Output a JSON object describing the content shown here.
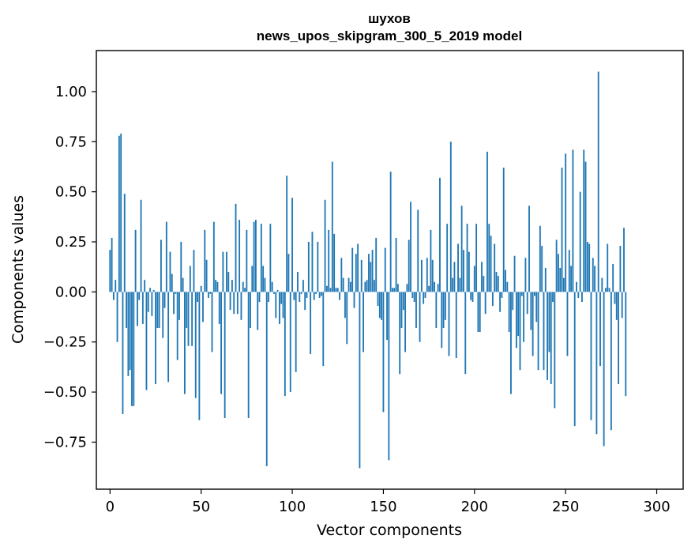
{
  "chart_data": {
    "type": "bar",
    "title_line1": "шухов",
    "title_line2": "news_upos_skipgram_300_5_2019 model",
    "xlabel": "Vector components",
    "ylabel": "Components values",
    "xlim": [
      -7.5,
      314.5
    ],
    "ylim": [
      -0.985,
      1.205
    ],
    "x_ticks": [
      0,
      50,
      100,
      150,
      200,
      250,
      300
    ],
    "x_tick_labels": [
      "0",
      "50",
      "100",
      "150",
      "200",
      "250",
      "300"
    ],
    "y_ticks": [
      -0.75,
      -0.5,
      -0.25,
      0.0,
      0.25,
      0.5,
      0.75,
      1.0
    ],
    "y_tick_labels": [
      "−0.75",
      "−0.50",
      "−0.25",
      "0.00",
      "0.25",
      "0.50",
      "0.75",
      "1.00"
    ],
    "bar_color": "#1f77b4",
    "grid": false,
    "values": [
      0.21,
      0.27,
      -0.04,
      0.06,
      -0.25,
      0.78,
      0.79,
      -0.61,
      0.49,
      -0.18,
      -0.42,
      -0.39,
      -0.57,
      -0.57,
      0.31,
      -0.17,
      -0.04,
      0.46,
      -0.16,
      0.06,
      -0.49,
      -0.1,
      0.02,
      -0.12,
      0.01,
      -0.46,
      -0.18,
      -0.18,
      0.26,
      -0.23,
      -0.08,
      0.35,
      -0.45,
      0.2,
      0.09,
      -0.11,
      -0.01,
      -0.34,
      -0.14,
      0.25,
      0.07,
      -0.51,
      -0.18,
      -0.27,
      0.13,
      -0.27,
      0.21,
      -0.53,
      -0.05,
      -0.64,
      0.03,
      -0.15,
      0.31,
      0.16,
      -0.03,
      -0.01,
      -0.3,
      0.35,
      0.06,
      0.05,
      -0.16,
      -0.51,
      0.2,
      -0.63,
      0.2,
      0.1,
      -0.09,
      0.06,
      -0.11,
      0.44,
      -0.11,
      0.36,
      -0.14,
      0.05,
      0.02,
      0.31,
      -0.63,
      -0.18,
      0.13,
      0.35,
      0.36,
      -0.19,
      -0.05,
      0.34,
      0.13,
      0.07,
      -0.87,
      -0.05,
      0.34,
      0.05,
      -0.01,
      -0.13,
      0.01,
      -0.16,
      -0.06,
      -0.13,
      -0.52,
      0.58,
      0.19,
      -0.5,
      0.47,
      -0.04,
      -0.4,
      0.1,
      -0.05,
      -0.01,
      0.06,
      -0.09,
      -0.03,
      0.25,
      -0.31,
      0.3,
      -0.04,
      -0.01,
      0.25,
      -0.03,
      -0.02,
      -0.37,
      0.46,
      0.03,
      0.31,
      0.02,
      0.65,
      0.29,
      0.02,
      0.02,
      -0.04,
      0.17,
      0.07,
      -0.13,
      -0.26,
      0.07,
      0.05,
      0.22,
      -0.08,
      0.19,
      0.24,
      -0.88,
      0.16,
      -0.3,
      0.05,
      0.06,
      0.19,
      0.15,
      0.21,
      0.06,
      0.27,
      -0.07,
      -0.13,
      -0.14,
      -0.6,
      0.22,
      -0.24,
      -0.84,
      0.6,
      0.02,
      0.02,
      0.27,
      0.04,
      -0.41,
      -0.18,
      -0.09,
      -0.3,
      0.04,
      0.26,
      0.45,
      -0.03,
      -0.05,
      -0.18,
      0.41,
      -0.25,
      0.16,
      -0.06,
      -0.03,
      0.17,
      0.03,
      0.31,
      0.16,
      0.05,
      -0.18,
      0.04,
      0.57,
      -0.28,
      -0.18,
      -0.14,
      0.34,
      -0.32,
      0.75,
      0.07,
      0.15,
      -0.33,
      0.24,
      0.07,
      0.43,
      0.21,
      -0.41,
      0.34,
      0.2,
      -0.04,
      -0.05,
      0.13,
      0.34,
      -0.2,
      -0.2,
      0.15,
      0.08,
      -0.11,
      0.7,
      0.34,
      0.28,
      -0.07,
      0.24,
      0.1,
      0.08,
      -0.1,
      -0.03,
      0.62,
      0.11,
      0.05,
      -0.2,
      -0.51,
      -0.09,
      0.18,
      -0.28,
      -0.22,
      -0.39,
      -0.02,
      -0.25,
      0.17,
      -0.11,
      0.43,
      -0.19,
      -0.32,
      -0.02,
      -0.15,
      -0.39,
      0.33,
      0.23,
      -0.39,
      0.12,
      -0.44,
      -0.3,
      -0.46,
      -0.05,
      -0.58,
      0.26,
      0.19,
      0.12,
      0.62,
      0.07,
      0.69,
      -0.32,
      0.21,
      0.13,
      0.71,
      -0.67,
      0.05,
      -0.03,
      0.5,
      -0.05,
      0.71,
      0.65,
      0.25,
      0.24,
      -0.64,
      0.17,
      0.13,
      -0.71,
      1.1,
      -0.37,
      0.07,
      -0.77,
      0.02,
      0.24,
      0.02,
      -0.69,
      0.14,
      -0.06,
      -0.14,
      -0.46,
      0.23,
      -0.13,
      0.32,
      -0.52
    ]
  }
}
